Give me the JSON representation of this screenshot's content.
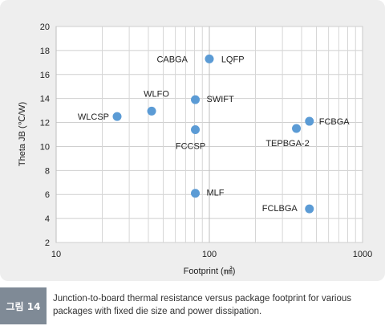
{
  "chart_data": {
    "type": "scatter",
    "title": "",
    "xlabel": "Footprint (㎟)",
    "ylabel": "Theta JB (℃/W)",
    "xscale": "log",
    "xlim": [
      10,
      1000
    ],
    "ylim": [
      2,
      20
    ],
    "xticks": [
      "10",
      "100",
      "1000"
    ],
    "yticks": [
      "2",
      "4",
      "6",
      "8",
      "10",
      "12",
      "14",
      "16",
      "18",
      "20"
    ],
    "grid": true,
    "marker_color": "#5b9bd5",
    "points": [
      {
        "label": "WLCSP",
        "x": 25,
        "y": 12.5
      },
      {
        "label": "WLFO",
        "x": 42,
        "y": 12.95
      },
      {
        "label": "SWIFT",
        "x": 81,
        "y": 13.9
      },
      {
        "label": "FCCSP",
        "x": 81,
        "y": 11.4
      },
      {
        "label": "MLF",
        "x": 81,
        "y": 6.1
      },
      {
        "label": "CABGA",
        "x": 100,
        "y": 17.3
      },
      {
        "label": "LQFP",
        "x": 101,
        "y": 17.3
      },
      {
        "label": "TEPBGA-2",
        "x": 370,
        "y": 11.5
      },
      {
        "label": "FCBGA",
        "x": 450,
        "y": 12.1
      },
      {
        "label": "FCLBGA",
        "x": 450,
        "y": 4.8
      }
    ]
  },
  "caption": {
    "badge": "그림 14",
    "text": "Junction-to-board thermal resistance versus package footprint for various packages with fixed die size and power dissipation."
  }
}
